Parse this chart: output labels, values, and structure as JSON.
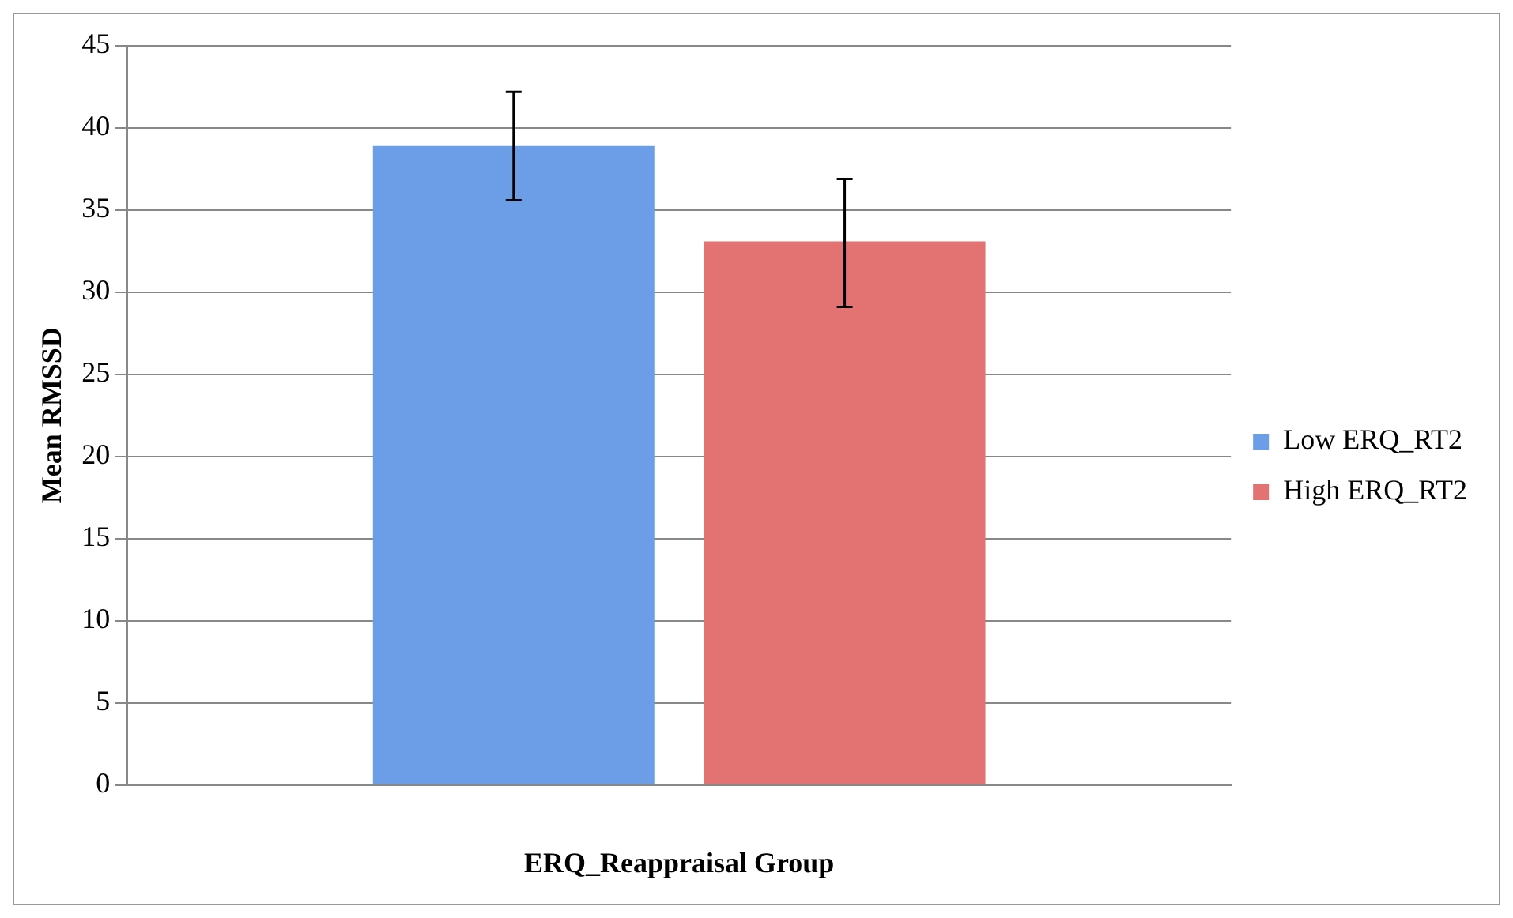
{
  "chart_data": {
    "type": "bar",
    "xlabel": "ERQ_Reappraisal Group",
    "ylabel": "Mean RMSSD",
    "categories": [
      null
    ],
    "series": [
      {
        "name": "Low ERQ_RT2",
        "color": "#6b9ee6",
        "values": [
          38.9
        ],
        "errors": [
          [
            35.6,
            42.2
          ]
        ]
      },
      {
        "name": "High ERQ_RT2",
        "color": "#e37272",
        "values": [
          33.1
        ],
        "errors": [
          [
            29.1,
            36.9
          ]
        ]
      }
    ],
    "ylim": [
      0,
      45
    ],
    "yticks": [
      0,
      5,
      10,
      15,
      20,
      25,
      30,
      35,
      40,
      45
    ],
    "grid": "y",
    "legend": "right"
  }
}
